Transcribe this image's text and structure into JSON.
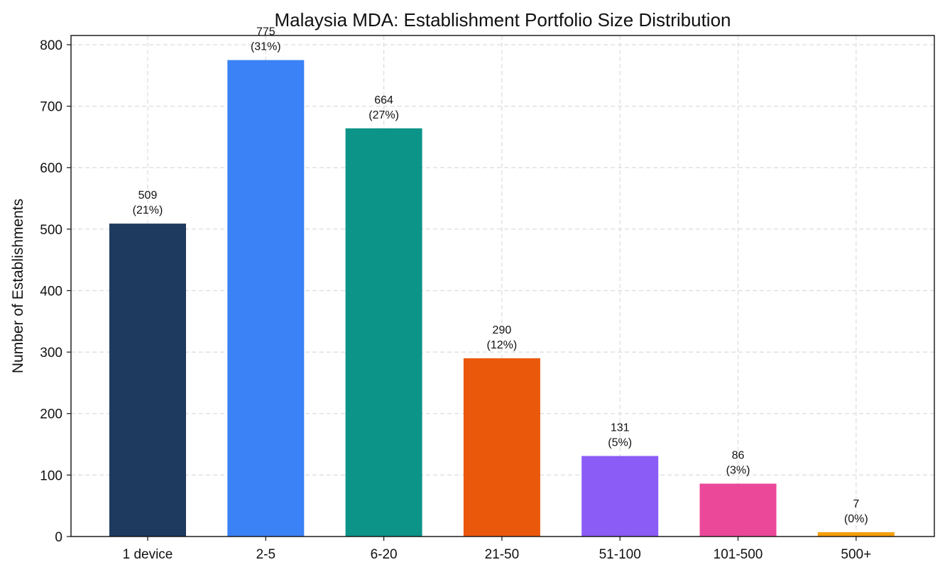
{
  "chart_data": {
    "type": "bar",
    "title": "Malaysia MDA: Establishment Portfolio Size Distribution",
    "xlabel": "",
    "ylabel": "Number of Establishments",
    "categories": [
      "1 device",
      "2-5",
      "6-20",
      "21-50",
      "51-100",
      "101-500",
      "500+"
    ],
    "values": [
      509,
      775,
      664,
      290,
      131,
      86,
      7
    ],
    "percent_labels": [
      "(21%)",
      "(31%)",
      "(27%)",
      "(12%)",
      "(5%)",
      "(3%)",
      "(0%)"
    ],
    "colors": [
      "#1f3a5f",
      "#3b82f6",
      "#0d9488",
      "#ea580c",
      "#8b5cf6",
      "#ec4899",
      "#f59e0b"
    ],
    "ylim": [
      0,
      815
    ],
    "yticks": [
      0,
      100,
      200,
      300,
      400,
      500,
      600,
      700,
      800
    ],
    "grid": true,
    "legend": "none"
  }
}
